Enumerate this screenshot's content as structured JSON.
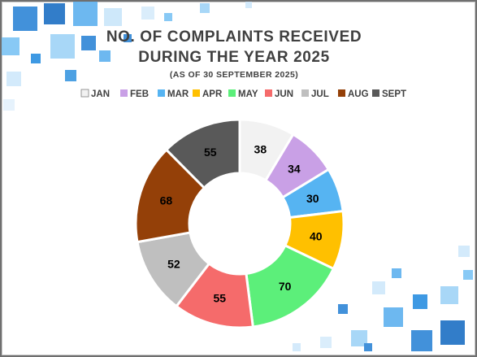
{
  "chart_data": {
    "type": "pie",
    "variant": "doughnut",
    "title_lines": [
      "NO. OF COMPLAINTS RECEIVED",
      "DURING THE YEAR 2025"
    ],
    "subtitle": "(AS OF 30 SEPTEMBER 2025)",
    "legend_position": "top",
    "categories": [
      "JAN",
      "FEB",
      "MAR",
      "APR",
      "MAY",
      "JUN",
      "JUL",
      "AUG",
      "SEPT"
    ],
    "values": [
      38,
      34,
      30,
      40,
      70,
      55,
      52,
      68,
      55
    ],
    "colors": [
      "#f2f2f2",
      "#c9a0e6",
      "#56b4f2",
      "#ffc000",
      "#5cef7a",
      "#f56b6b",
      "#bfbfbf",
      "#944008",
      "#595959"
    ]
  }
}
